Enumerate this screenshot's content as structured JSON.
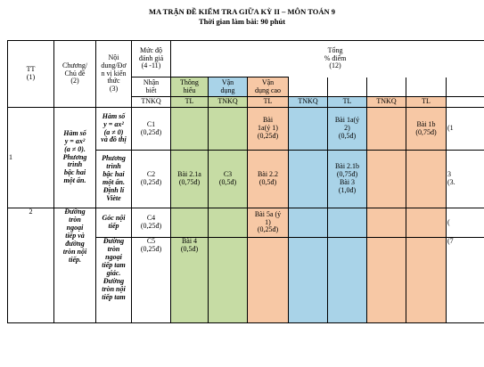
{
  "title": "MA TRẬN ĐỀ KIỂM TRA GIỮA KỲ II – MÔN TOÁN 9",
  "subtitle": "Thời gian làm bài: 90 phút",
  "header": {
    "tt": "TT\n(1)",
    "chuong": "Chương/\nChủ đề\n(2)",
    "noidung": "Nội\ndung/Đơ\nn vị kiến\nthức\n(3)",
    "mucdo": "Mức độ\nđánh giá\n(4 -11)",
    "tong": "Tổng\n% điểm\n(12)",
    "levels": [
      "Nhận\nbiết",
      "Thông\nhiểu",
      "Vận\ndụng",
      "Vận\ndụng cao"
    ],
    "types": [
      "TNKQ",
      "TL",
      "TNKQ",
      "TL",
      "TNKQ",
      "TL",
      "TNKQ",
      "TL"
    ]
  },
  "rows": {
    "tt1": "1",
    "tt2": "2",
    "chuong1": "Hàm số\ny = ax²\n(a ≠ 0).\nPhương\ntrình\nbậc hai\nmột ẩn.",
    "chuong2": "Đường\ntròn\nngoại\ntiếp và\nđường\ntròn nội\ntiếp.",
    "nd1": "Hàm số\ny = ax²\n(a ≠ 0)\nvà đồ thị",
    "nd2": "Phương\ntrình\nbậc hai\nmột ẩn.\nĐịnh lí\nViète",
    "nd3": "Góc nội\ntiếp",
    "nd4": "Đường\ntròn\nngoại\ntiếp tam\ngiác.\nĐường\ntròn nội\ntiếp tam",
    "r1": {
      "c1": "C1\n(0,25đ)",
      "c4": "Bài\n1a(ý 1)\n(0,25đ)",
      "c6": "Bài 1a(ý\n2)\n(0,5đ)",
      "c8": "Bài 1b\n(0,75đ)",
      "edge": "(1"
    },
    "r2": {
      "c1": "C2\n(0,25đ)",
      "c2": "Bài 2.1a\n(0,75đ)",
      "c3": "C3\n(0,5đ)",
      "c4": "Bài 2.2\n(0,5đ)",
      "c6": "Bài 2.1b\n(0,75đ)\nBài 3\n(1,0đ)",
      "edge": "3\n(3."
    },
    "r3": {
      "c1": "C4\n(0,25đ)",
      "c4": "Bài 5a (ý\n1)\n(0,25đ)",
      "edge": "("
    },
    "r4": {
      "c1": "C5\n(0,25đ)",
      "c2": "Bài 4\n(0,5đ)",
      "edge": "(7"
    }
  }
}
